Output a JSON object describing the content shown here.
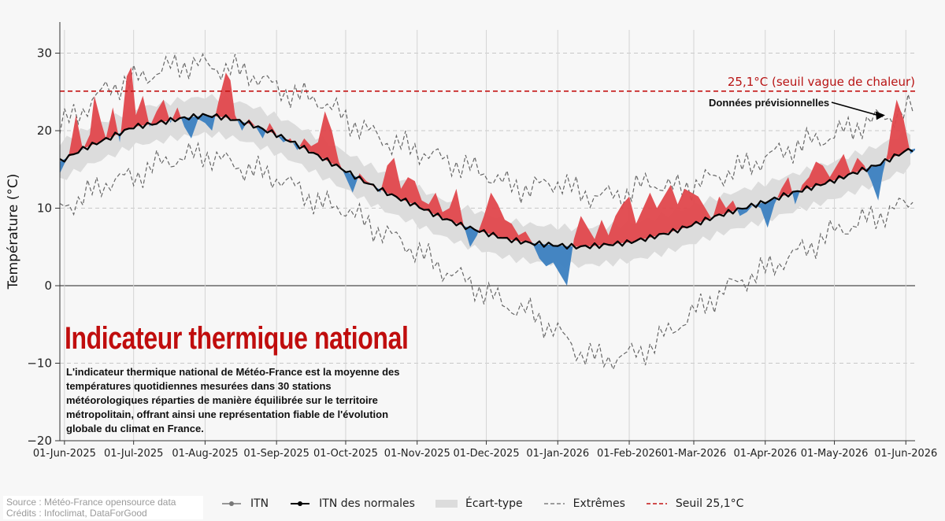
{
  "chart_data": {
    "type": "area",
    "title": "Indicateur thermique national",
    "description": "L'indicateur thermique national de Météo-France est la moyenne des températures quotidiennes mesurées dans 30 stations météorologiques réparties de manière équilibrée sur le territoire métropolitain, offrant ainsi une représentation fiable de l'évolution globale du climat en France.",
    "ylabel": "Température (°C)",
    "xlabel": "",
    "ylim": [
      -20,
      33
    ],
    "yticks": [
      -20,
      -10,
      0,
      10,
      20,
      30
    ],
    "ytick_labels": [
      "−20",
      "−10",
      "0",
      "10",
      "20",
      "30"
    ],
    "xticks": [
      "01-Jun-2025",
      "01-Jul-2025",
      "01-Aug-2025",
      "01-Sep-2025",
      "01-Oct-2025",
      "01-Nov-2025",
      "01-Dec-2025",
      "01-Jan-2026",
      "01-Feb-2026",
      "01-Mar-2026",
      "01-Apr-2026",
      "01-May-2026",
      "01-Jun-2026"
    ],
    "x_range": [
      "2025-05-30",
      "2026-06-05"
    ],
    "grid": "dashed",
    "legend_position": "bottom",
    "threshold": {
      "value": 25.1,
      "label": "25,1°C (seuil vague de chaleur)"
    },
    "annotation": {
      "text": "Données prévisionnelles",
      "target_date": "2026-05-23",
      "target_value": 22.0
    },
    "normals": {
      "name": "ITN des normales",
      "dates": [
        "2025-05-30",
        "2025-06-10",
        "2025-06-20",
        "2025-07-01",
        "2025-07-10",
        "2025-07-20",
        "2025-08-01",
        "2025-08-10",
        "2025-08-20",
        "2025-09-01",
        "2025-09-10",
        "2025-09-20",
        "2025-10-01",
        "2025-10-10",
        "2025-10-20",
        "2025-11-01",
        "2025-11-10",
        "2025-11-20",
        "2025-12-01",
        "2025-12-10",
        "2025-12-20",
        "2026-01-01",
        "2026-01-10",
        "2026-01-20",
        "2026-02-01",
        "2026-02-10",
        "2026-02-20",
        "2026-03-01",
        "2026-03-10",
        "2026-03-20",
        "2026-04-01",
        "2026-04-10",
        "2026-04-20",
        "2026-05-01",
        "2026-05-10",
        "2026-05-20",
        "2026-06-01",
        "2026-06-05"
      ],
      "values": [
        16.0,
        17.8,
        19.0,
        20.5,
        20.9,
        21.5,
        22.0,
        21.7,
        20.9,
        19.5,
        18.2,
        16.6,
        14.8,
        13.3,
        11.8,
        10.3,
        9.0,
        7.8,
        6.8,
        6.0,
        5.5,
        5.2,
        5.0,
        5.2,
        5.6,
        6.2,
        7.0,
        7.9,
        8.9,
        9.8,
        10.8,
        11.7,
        12.6,
        13.6,
        14.6,
        15.6,
        17.4,
        17.7
      ]
    },
    "std_band": {
      "name": "Écart-type",
      "half_width": 2.4
    },
    "itn": {
      "name": "ITN",
      "dates": [
        "2025-05-30",
        "2025-06-03",
        "2025-06-06",
        "2025-06-09",
        "2025-06-12",
        "2025-06-14",
        "2025-06-17",
        "2025-06-19",
        "2025-06-22",
        "2025-06-25",
        "2025-06-28",
        "2025-06-30",
        "2025-07-02",
        "2025-07-05",
        "2025-07-08",
        "2025-07-11",
        "2025-07-14",
        "2025-07-17",
        "2025-07-20",
        "2025-07-23",
        "2025-07-26",
        "2025-07-29",
        "2025-08-01",
        "2025-08-04",
        "2025-08-07",
        "2025-08-10",
        "2025-08-12",
        "2025-08-14",
        "2025-08-17",
        "2025-08-20",
        "2025-08-23",
        "2025-08-26",
        "2025-08-29",
        "2025-09-01",
        "2025-09-04",
        "2025-09-07",
        "2025-09-10",
        "2025-09-13",
        "2025-09-16",
        "2025-09-19",
        "2025-09-22",
        "2025-09-25",
        "2025-09-28",
        "2025-10-01",
        "2025-10-04",
        "2025-10-07",
        "2025-10-10",
        "2025-10-13",
        "2025-10-16",
        "2025-10-19",
        "2025-10-22",
        "2025-10-25",
        "2025-10-28",
        "2025-10-31",
        "2025-11-03",
        "2025-11-06",
        "2025-11-09",
        "2025-11-12",
        "2025-11-15",
        "2025-11-18",
        "2025-11-21",
        "2025-11-24",
        "2025-11-27",
        "2025-11-30",
        "2025-12-03",
        "2025-12-06",
        "2025-12-09",
        "2025-12-12",
        "2025-12-15",
        "2025-12-18",
        "2025-12-21",
        "2025-12-24",
        "2025-12-27",
        "2025-12-30",
        "2026-01-02",
        "2026-01-05",
        "2026-01-08",
        "2026-01-11",
        "2026-01-14",
        "2026-01-17",
        "2026-01-20",
        "2026-01-23",
        "2026-01-26",
        "2026-01-29",
        "2026-02-01",
        "2026-02-04",
        "2026-02-07",
        "2026-02-10",
        "2026-02-13",
        "2026-02-16",
        "2026-02-19",
        "2026-02-22",
        "2026-02-25",
        "2026-02-28",
        "2026-03-03",
        "2026-03-06",
        "2026-03-09",
        "2026-03-12",
        "2026-03-15",
        "2026-03-18",
        "2026-03-21",
        "2026-03-24",
        "2026-03-27",
        "2026-03-30",
        "2026-04-02",
        "2026-04-05",
        "2026-04-08",
        "2026-04-11",
        "2026-04-14",
        "2026-04-17",
        "2026-04-20",
        "2026-04-23",
        "2026-04-26",
        "2026-04-29",
        "2026-05-02",
        "2026-05-05",
        "2026-05-08",
        "2026-05-11",
        "2026-05-14",
        "2026-05-17",
        "2026-05-20",
        "2026-05-22",
        "2026-05-24",
        "2026-05-26",
        "2026-05-28",
        "2026-05-31",
        "2026-06-03",
        "2026-06-05"
      ],
      "values": [
        14.5,
        17.0,
        22.0,
        17.5,
        19.5,
        24.5,
        21.0,
        19.0,
        23.0,
        18.5,
        27.0,
        28.2,
        22.0,
        24.5,
        20.5,
        22.5,
        24.0,
        21.0,
        23.0,
        20.5,
        19.0,
        21.5,
        21.0,
        20.0,
        24.0,
        27.5,
        26.5,
        22.0,
        20.0,
        21.5,
        20.5,
        19.0,
        21.0,
        19.5,
        18.5,
        19.0,
        17.5,
        19.0,
        18.0,
        18.5,
        22.5,
        20.0,
        16.0,
        14.0,
        12.0,
        14.5,
        13.5,
        13.0,
        12.0,
        15.5,
        16.5,
        12.5,
        14.0,
        13.5,
        11.0,
        10.5,
        12.0,
        9.5,
        10.0,
        12.5,
        8.0,
        5.0,
        6.5,
        9.0,
        12.0,
        10.5,
        8.5,
        8.0,
        6.5,
        7.0,
        5.5,
        3.5,
        2.5,
        3.0,
        1.5,
        0.0,
        6.0,
        9.0,
        7.5,
        6.0,
        8.5,
        6.5,
        9.0,
        10.5,
        11.5,
        8.0,
        10.0,
        12.0,
        10.0,
        11.5,
        13.0,
        10.5,
        12.5,
        12.0,
        11.5,
        10.0,
        8.5,
        11.5,
        10.0,
        11.0,
        9.0,
        9.5,
        10.5,
        10.0,
        7.5,
        10.5,
        12.5,
        14.0,
        10.5,
        13.0,
        14.0,
        16.0,
        15.5,
        14.0,
        15.5,
        17.0,
        14.5,
        16.5,
        15.5,
        13.5,
        11.0,
        14.5,
        17.0,
        21.0,
        24.0,
        21.5,
        17.0,
        17.5
      ]
    },
    "extremes_max": {
      "name": "Extrêmes",
      "dates": [
        "2025-05-30",
        "2025-06-10",
        "2025-06-20",
        "2025-07-01",
        "2025-07-10",
        "2025-07-20",
        "2025-08-01",
        "2025-08-10",
        "2025-08-20",
        "2025-09-01",
        "2025-09-10",
        "2025-09-20",
        "2025-10-01",
        "2025-10-10",
        "2025-10-20",
        "2025-11-01",
        "2025-11-10",
        "2025-11-20",
        "2025-12-01",
        "2025-12-10",
        "2025-12-20",
        "2026-01-01",
        "2026-01-10",
        "2026-01-20",
        "2026-02-01",
        "2026-02-10",
        "2026-02-20",
        "2026-03-01",
        "2026-03-10",
        "2026-03-20",
        "2026-04-01",
        "2026-04-10",
        "2026-04-20",
        "2026-05-01",
        "2026-05-10",
        "2026-05-20",
        "2026-06-01",
        "2026-06-05"
      ],
      "values": [
        20.5,
        23.0,
        25.5,
        26.5,
        27.5,
        28.5,
        28.5,
        28.0,
        27.5,
        25.5,
        24.5,
        24.0,
        21.5,
        20.0,
        18.5,
        17.5,
        16.5,
        15.5,
        14.5,
        13.0,
        12.5,
        13.5,
        12.0,
        11.5,
        12.0,
        13.5,
        12.5,
        13.0,
        14.0,
        15.0,
        16.5,
        17.5,
        18.5,
        19.5,
        20.5,
        21.5,
        22.5,
        23.0
      ]
    },
    "extremes_min": {
      "name": "Extrêmes",
      "dates": [
        "2025-05-30",
        "2025-06-10",
        "2025-06-20",
        "2025-07-01",
        "2025-07-10",
        "2025-07-20",
        "2025-08-01",
        "2025-08-10",
        "2025-08-20",
        "2025-09-01",
        "2025-09-10",
        "2025-09-20",
        "2025-10-01",
        "2025-10-10",
        "2025-10-20",
        "2025-11-01",
        "2025-11-10",
        "2025-11-20",
        "2025-12-01",
        "2025-12-10",
        "2025-12-20",
        "2026-01-01",
        "2026-01-10",
        "2026-01-20",
        "2026-02-01",
        "2026-02-10",
        "2026-02-20",
        "2026-03-01",
        "2026-03-10",
        "2026-03-20",
        "2026-04-01",
        "2026-04-10",
        "2026-04-20",
        "2026-05-01",
        "2026-05-10",
        "2026-05-20",
        "2026-06-01",
        "2026-06-05"
      ],
      "values": [
        10.0,
        11.5,
        13.5,
        14.0,
        15.5,
        16.5,
        17.0,
        16.0,
        15.0,
        14.0,
        12.5,
        10.5,
        10.0,
        8.0,
        6.5,
        4.5,
        2.5,
        1.0,
        -1.0,
        -2.5,
        -3.5,
        -6.0,
        -8.5,
        -9.5,
        -9.0,
        -8.0,
        -5.5,
        -3.5,
        -1.5,
        0.5,
        2.0,
        3.5,
        5.0,
        7.0,
        8.0,
        9.0,
        10.5,
        11.0
      ]
    },
    "series": [
      {
        "name": "ITN"
      },
      {
        "name": "ITN des normales"
      },
      {
        "name": "Écart-type"
      },
      {
        "name": "Extrêmes"
      },
      {
        "name": "Seuil 25,1°C"
      }
    ],
    "colors": {
      "above": "#e0474c",
      "below": "#3b7fc0",
      "band": "#dcdcdc",
      "normals": "#000000",
      "extremes": "#666666",
      "threshold": "#c41414"
    }
  },
  "legend": {
    "items": [
      {
        "label": "ITN",
        "icon": "line-dot-gray"
      },
      {
        "label": "ITN des normales",
        "icon": "line-dot-black"
      },
      {
        "label": "Écart-type",
        "icon": "gray-patch"
      },
      {
        "label": "Extrêmes",
        "icon": "dashed-gray"
      },
      {
        "label": "Seuil 25,1°C",
        "icon": "dashed-red"
      }
    ]
  },
  "source": {
    "line1": "Source : Météo-France opensource data",
    "line2": "Crédits : Infoclimat, DataForGood"
  }
}
